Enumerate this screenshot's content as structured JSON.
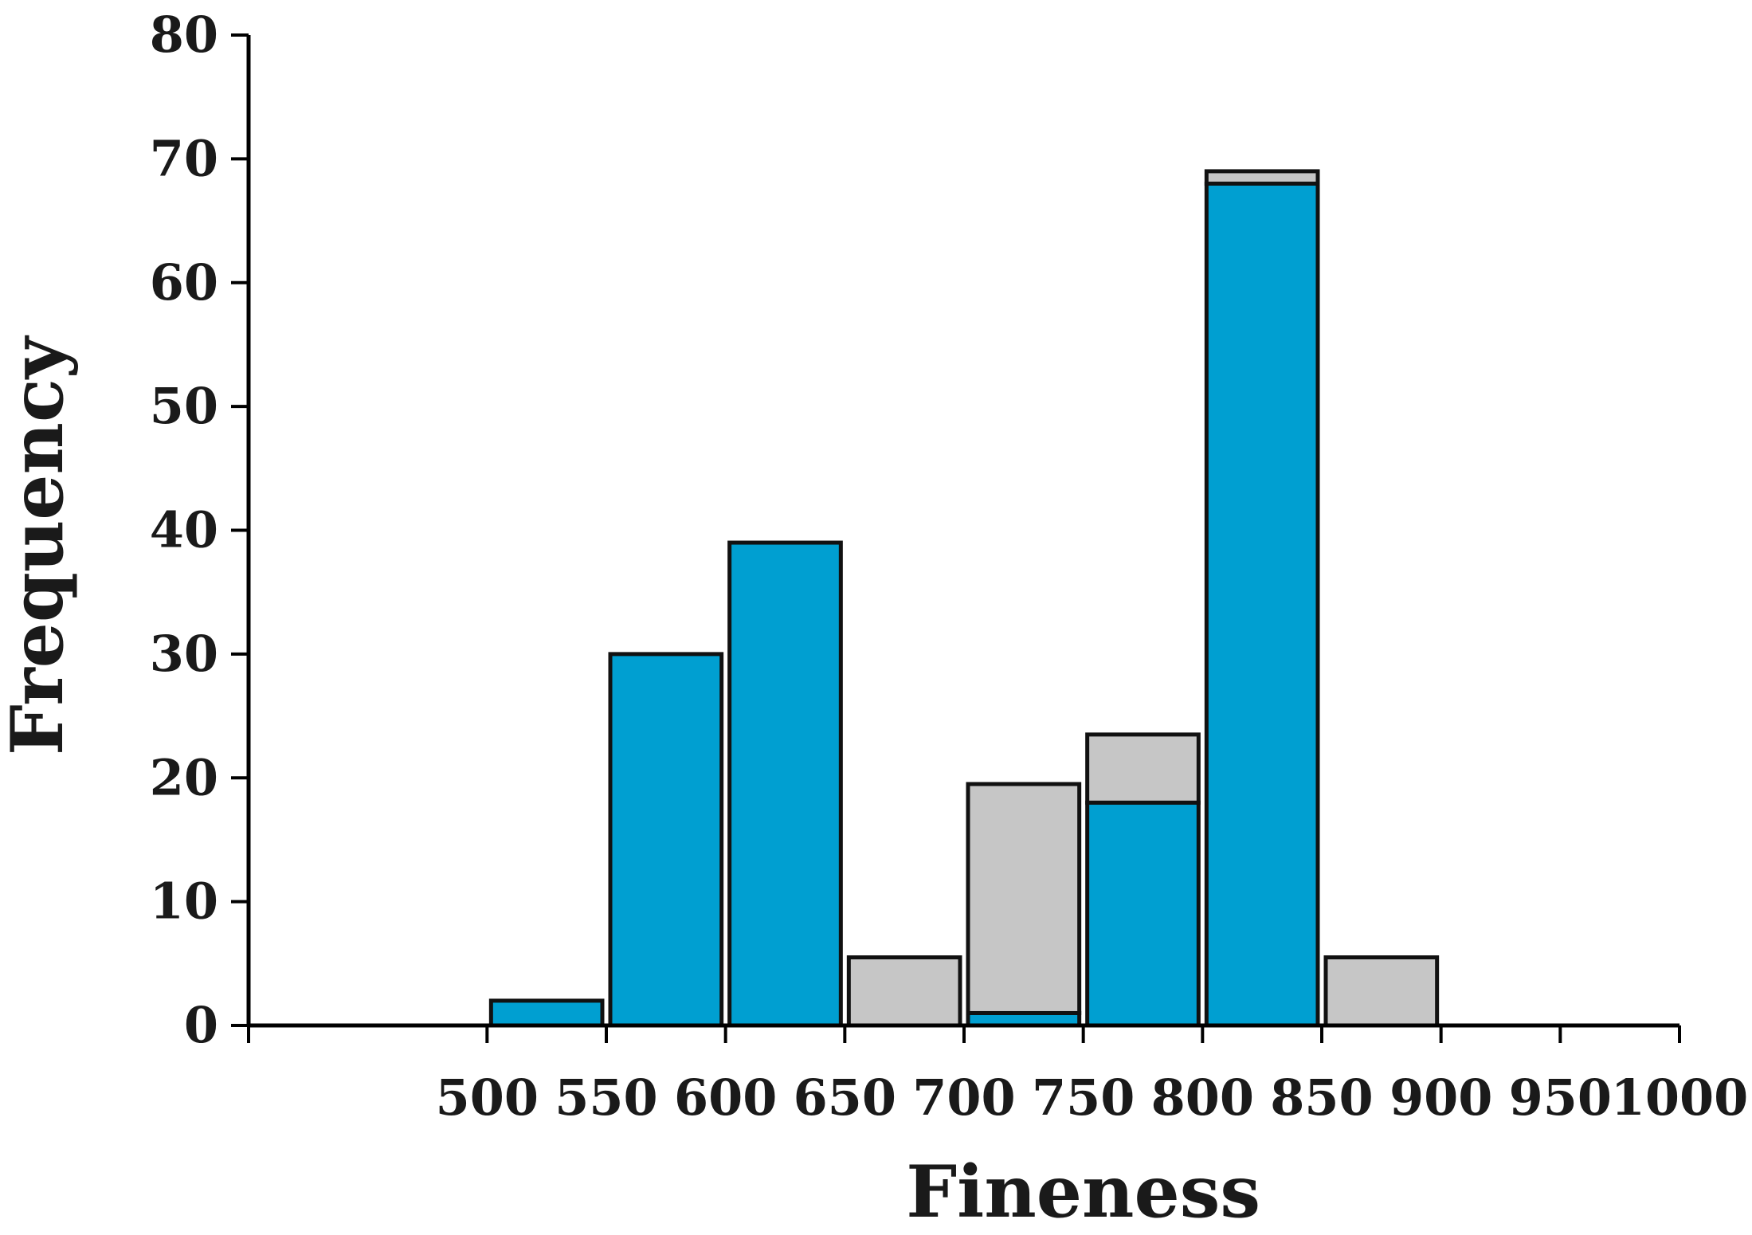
{
  "chart_data": {
    "type": "bar",
    "stacked": true,
    "xlabel": "Fineness",
    "ylabel": "Frequency",
    "xlim": [
      400,
      1000
    ],
    "ylim": [
      0,
      80
    ],
    "xticks": [
      500,
      550,
      600,
      650,
      700,
      750,
      800,
      850,
      900,
      950,
      1000
    ],
    "yticks": [
      0,
      10,
      20,
      30,
      40,
      50,
      60,
      70,
      80
    ],
    "bins": [
      {
        "x0": 500,
        "x1": 550
      },
      {
        "x0": 550,
        "x1": 600
      },
      {
        "x0": 600,
        "x1": 650
      },
      {
        "x0": 650,
        "x1": 700
      },
      {
        "x0": 700,
        "x1": 750
      },
      {
        "x0": 750,
        "x1": 800
      },
      {
        "x0": 800,
        "x1": 850
      },
      {
        "x0": 850,
        "x1": 900
      }
    ],
    "series": [
      {
        "color": "#009fd1",
        "values": [
          2,
          30,
          39,
          0,
          1,
          18,
          68,
          0
        ]
      },
      {
        "color": "#c6c6c6",
        "values": [
          0,
          0,
          0,
          5.5,
          18.5,
          5.5,
          1,
          5.5
        ]
      }
    ],
    "grid": false,
    "legend": "none"
  }
}
